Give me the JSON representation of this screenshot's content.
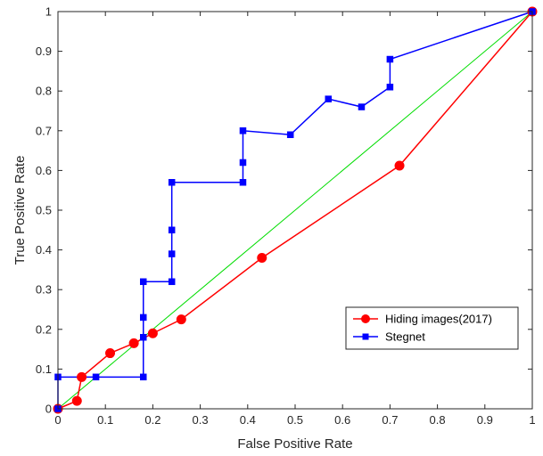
{
  "chart_data": {
    "type": "line",
    "title": "",
    "xlabel": "False Positive Rate",
    "ylabel": "True Positive Rate",
    "xlim": [
      0,
      1
    ],
    "ylim": [
      0,
      1
    ],
    "xticks": [
      "0",
      "0.1",
      "0.2",
      "0.3",
      "0.4",
      "0.5",
      "0.6",
      "0.7",
      "0.8",
      "0.9",
      "1"
    ],
    "yticks": [
      "0",
      "0.1",
      "0.2",
      "0.3",
      "0.4",
      "0.5",
      "0.6",
      "0.7",
      "0.8",
      "0.9",
      "1"
    ],
    "grid": false,
    "legend_position": "lower-right",
    "series": [
      {
        "name": "Hiding images(2017)",
        "color": "#ff0000",
        "marker": "circle",
        "points": [
          [
            0,
            0
          ],
          [
            0.04,
            0.02
          ],
          [
            0.05,
            0.08
          ],
          [
            0.11,
            0.14
          ],
          [
            0.16,
            0.165
          ],
          [
            0.2,
            0.19
          ],
          [
            0.26,
            0.225
          ],
          [
            0.43,
            0.38
          ],
          [
            0.72,
            0.612
          ],
          [
            1,
            1
          ]
        ]
      },
      {
        "name": "Stegnet",
        "color": "#0000ff",
        "marker": "square",
        "points": [
          [
            0,
            0
          ],
          [
            0,
            0.08
          ],
          [
            0.08,
            0.08
          ],
          [
            0.18,
            0.08
          ],
          [
            0.18,
            0.18
          ],
          [
            0.18,
            0.23
          ],
          [
            0.18,
            0.32
          ],
          [
            0.24,
            0.32
          ],
          [
            0.24,
            0.39
          ],
          [
            0.24,
            0.45
          ],
          [
            0.24,
            0.57
          ],
          [
            0.39,
            0.57
          ],
          [
            0.39,
            0.62
          ],
          [
            0.39,
            0.7
          ],
          [
            0.49,
            0.69
          ],
          [
            0.57,
            0.78
          ],
          [
            0.64,
            0.76
          ],
          [
            0.7,
            0.81
          ],
          [
            0.7,
            0.88
          ],
          [
            1,
            1
          ]
        ]
      },
      {
        "name": "",
        "color": "#00dd00",
        "marker": "none",
        "points": [
          [
            0,
            0
          ],
          [
            1,
            1
          ]
        ]
      }
    ]
  }
}
